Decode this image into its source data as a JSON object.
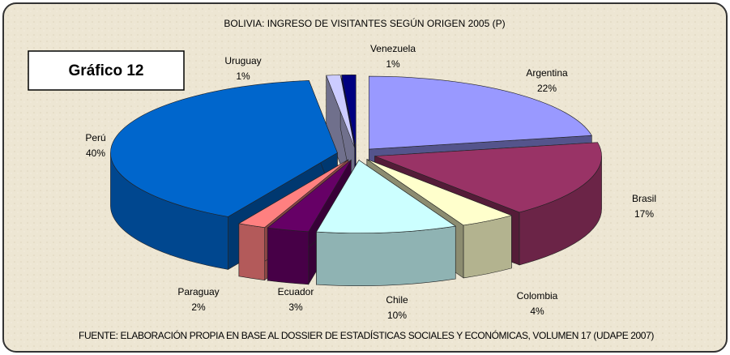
{
  "chart_data": {
    "type": "pie",
    "title": "BOLIVIA: INGRESO DE VISITANTES SEGÚN ORIGEN 2005 (P)",
    "badge": "Gráfico 12",
    "source": "FUENTE: ELABORACIÓN PROPIA EN BASE AL DOSSIER DE ESTADÍSTICAS SOCIALES Y ECONÓMICAS, VOLUMEN 17 (UDAPE 2007)",
    "categories": [
      "Argentina",
      "Brasil",
      "Colombia",
      "Chile",
      "Ecuador",
      "Paraguay",
      "Perú",
      "Uruguay",
      "Venezuela"
    ],
    "values": [
      22,
      17,
      4,
      10,
      3,
      2,
      40,
      1,
      1
    ],
    "value_labels": [
      "22%",
      "17%",
      "4%",
      "10%",
      "3%",
      "2%",
      "40%",
      "1%",
      "1%"
    ],
    "colors": [
      "#9999ff",
      "#993366",
      "#ffffcc",
      "#ccffff",
      "#660066",
      "#ff8080",
      "#0066cc",
      "#ccccff",
      "#000080"
    ]
  }
}
